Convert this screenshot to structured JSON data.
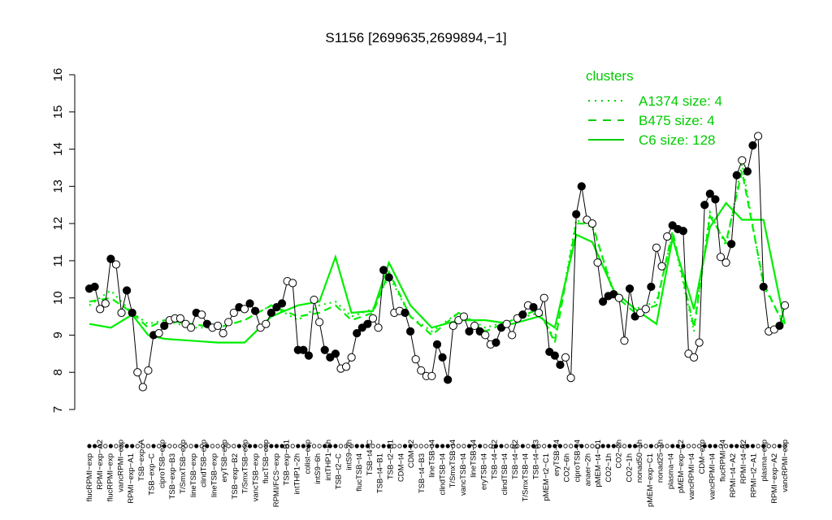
{
  "chart_data": {
    "type": "line",
    "title": "S1156 [2699635,2699894,−1]",
    "xlabel": "",
    "ylabel": "",
    "ylim": [
      7,
      16
    ],
    "yticks": [
      7,
      8,
      9,
      10,
      11,
      12,
      13,
      14,
      15,
      16
    ],
    "grid": false,
    "legend_position": "top-right",
    "colors": {
      "line": "#00ee00",
      "points": "#000000",
      "legend": "#00cc00"
    },
    "legend": {
      "title": "clusters",
      "entries": [
        {
          "label": "A1374 size: 4",
          "style": "dotted"
        },
        {
          "label": "B475 size: 4",
          "style": "dashed"
        },
        {
          "label": "C6 size: 128",
          "style": "solid"
        }
      ]
    },
    "x_tick_labels_top": [
      "RPMI−exp−A2",
      "vancRPMI−exp",
      "TSB−exp−A",
      "ciproTSB−exp",
      "T/SmxTSB−exp",
      "clindTSB−exp",
      "eryTSB−exp",
      "T/SmxTSB−exp",
      "flucTSB−exp",
      "TSB−exp−B1",
      "colist−exp",
      "intTHP1−6h",
      "intS9−2h",
      "TSB−t4−C",
      "TSB−t2−B1",
      "CDM−t2",
      "lineTSB−t4",
      "T/SmxTSB−t4",
      "lineTSB−t4",
      "TSB−t4−B2",
      "TSB−t4−B2",
      "TSB−t4−B3",
      "eryTSB−t4",
      "ciproTSB−t4",
      "pMEM−t4−C1",
      "CO2−2h",
      "nonad50−1h",
      "nonad25−1h",
      "pMEM−exp−C2",
      "CDM−exp",
      "flucRPMI−t4",
      "RPMI−t4−A2",
      "plasma−exp",
      "vancRPMI−exp"
    ],
    "x_tick_labels_bottom": [
      "flucRPMI−exp",
      "flucRPMI−exp",
      "RPMI−exp−A1",
      "TSB−exp−C",
      "TSB−exp−B3",
      "lineTSB−exp",
      "lineTSB−exp",
      "TSB−exp−B2",
      "vancTSB−exp",
      "RPMI/FCS−exp",
      "intTHP1−2h",
      "intS9−6h",
      "TSB−t2−C",
      "flucTSB−t4",
      "TSB−t4−B1",
      "CDM−t4",
      "TSB−t4−B3",
      "clindTSB−t4",
      "vancTSB−t4",
      "eryTSB−t4",
      "clindTSB−t4",
      "T/SmxTSB−t4",
      "pMEM−t2−C1",
      "CO2−6h",
      "anaer−2h",
      "CO2−1h",
      "CO2−1h",
      "pMEM−exp−C1",
      "plasma−t4",
      "vancRPMI−t4",
      "vancRPMI−t4",
      "RPMI−t4−A2",
      "RPMI−t2−A1",
      "RPMI−exp−A2"
    ],
    "series": [
      {
        "points": [
          {
            "x": 1,
            "y": 10.25,
            "f": 1
          },
          {
            "x": 2,
            "y": 10.3,
            "f": 1
          },
          {
            "x": 3,
            "y": 9.7,
            "f": 0
          },
          {
            "x": 4,
            "y": 9.85,
            "f": 0
          },
          {
            "x": 5,
            "y": 11.05,
            "f": 1
          },
          {
            "x": 6,
            "y": 10.9,
            "f": 0
          },
          {
            "x": 7,
            "y": 9.6,
            "f": 0
          },
          {
            "x": 8,
            "y": 10.2,
            "f": 1
          },
          {
            "x": 9,
            "y": 9.6,
            "f": 1
          },
          {
            "x": 10,
            "y": 8.0,
            "f": 0
          },
          {
            "x": 11,
            "y": 7.6,
            "f": 0
          },
          {
            "x": 12,
            "y": 8.05,
            "f": 0
          },
          {
            "x": 13,
            "y": 9.0,
            "f": 1
          },
          {
            "x": 14,
            "y": 9.05,
            "f": 0
          },
          {
            "x": 15,
            "y": 9.25,
            "f": 1
          },
          {
            "x": 16,
            "y": 9.4,
            "f": 0
          },
          {
            "x": 17,
            "y": 9.45,
            "f": 0
          },
          {
            "x": 18,
            "y": 9.45,
            "f": 0
          },
          {
            "x": 19,
            "y": 9.3,
            "f": 0
          },
          {
            "x": 20,
            "y": 9.2,
            "f": 0
          },
          {
            "x": 21,
            "y": 9.6,
            "f": 1
          },
          {
            "x": 22,
            "y": 9.55,
            "f": 0
          },
          {
            "x": 23,
            "y": 9.3,
            "f": 1
          },
          {
            "x": 24,
            "y": 9.2,
            "f": 0
          },
          {
            "x": 25,
            "y": 9.25,
            "f": 0
          },
          {
            "x": 26,
            "y": 9.05,
            "f": 0
          },
          {
            "x": 27,
            "y": 9.35,
            "f": 0
          },
          {
            "x": 28,
            "y": 9.6,
            "f": 0
          },
          {
            "x": 29,
            "y": 9.75,
            "f": 1
          },
          {
            "x": 30,
            "y": 9.7,
            "f": 0
          },
          {
            "x": 31,
            "y": 9.85,
            "f": 1
          },
          {
            "x": 32,
            "y": 9.65,
            "f": 1
          },
          {
            "x": 33,
            "y": 9.2,
            "f": 0
          },
          {
            "x": 34,
            "y": 9.3,
            "f": 0
          },
          {
            "x": 35,
            "y": 9.6,
            "f": 1
          },
          {
            "x": 36,
            "y": 9.75,
            "f": 1
          },
          {
            "x": 37,
            "y": 9.85,
            "f": 1
          },
          {
            "x": 38,
            "y": 10.45,
            "f": 0
          },
          {
            "x": 39,
            "y": 10.4,
            "f": 0
          },
          {
            "x": 40,
            "y": 8.6,
            "f": 1
          },
          {
            "x": 41,
            "y": 8.6,
            "f": 1
          },
          {
            "x": 42,
            "y": 8.45,
            "f": 1
          },
          {
            "x": 43,
            "y": 9.95,
            "f": 0
          },
          {
            "x": 44,
            "y": 9.35,
            "f": 0
          },
          {
            "x": 45,
            "y": 8.6,
            "f": 1
          },
          {
            "x": 46,
            "y": 8.4,
            "f": 1
          },
          {
            "x": 47,
            "y": 8.5,
            "f": 1
          },
          {
            "x": 48,
            "y": 8.1,
            "f": 0
          },
          {
            "x": 49,
            "y": 8.15,
            "f": 0
          },
          {
            "x": 50,
            "y": 8.4,
            "f": 0
          },
          {
            "x": 51,
            "y": 9.05,
            "f": 1
          },
          {
            "x": 52,
            "y": 9.2,
            "f": 1
          },
          {
            "x": 53,
            "y": 9.3,
            "f": 1
          },
          {
            "x": 54,
            "y": 9.45,
            "f": 0
          },
          {
            "x": 55,
            "y": 9.2,
            "f": 0
          },
          {
            "x": 56,
            "y": 10.75,
            "f": 1
          },
          {
            "x": 57,
            "y": 10.55,
            "f": 1
          },
          {
            "x": 58,
            "y": 9.6,
            "f": 0
          },
          {
            "x": 59,
            "y": 9.65,
            "f": 0
          },
          {
            "x": 60,
            "y": 9.6,
            "f": 1
          },
          {
            "x": 61,
            "y": 9.1,
            "f": 1
          },
          {
            "x": 62,
            "y": 8.35,
            "f": 0
          },
          {
            "x": 63,
            "y": 8.05,
            "f": 0
          },
          {
            "x": 64,
            "y": 7.9,
            "f": 0
          },
          {
            "x": 65,
            "y": 7.9,
            "f": 0
          },
          {
            "x": 66,
            "y": 8.75,
            "f": 1
          },
          {
            "x": 67,
            "y": 8.4,
            "f": 1
          },
          {
            "x": 68,
            "y": 7.8,
            "f": 1
          },
          {
            "x": 69,
            "y": 9.25,
            "f": 0
          },
          {
            "x": 70,
            "y": 9.4,
            "f": 0
          },
          {
            "x": 71,
            "y": 9.5,
            "f": 0
          },
          {
            "x": 72,
            "y": 9.1,
            "f": 1
          },
          {
            "x": 73,
            "y": 9.25,
            "f": 0
          },
          {
            "x": 74,
            "y": 9.1,
            "f": 1
          },
          {
            "x": 75,
            "y": 9.0,
            "f": 0
          },
          {
            "x": 76,
            "y": 8.75,
            "f": 0
          },
          {
            "x": 77,
            "y": 8.8,
            "f": 1
          },
          {
            "x": 78,
            "y": 9.2,
            "f": 1
          },
          {
            "x": 79,
            "y": 9.3,
            "f": 0
          },
          {
            "x": 80,
            "y": 9.0,
            "f": 0
          },
          {
            "x": 81,
            "y": 9.45,
            "f": 0
          },
          {
            "x": 82,
            "y": 9.55,
            "f": 1
          },
          {
            "x": 83,
            "y": 9.8,
            "f": 0
          },
          {
            "x": 84,
            "y": 9.75,
            "f": 1
          },
          {
            "x": 85,
            "y": 9.6,
            "f": 0
          },
          {
            "x": 86,
            "y": 10.0,
            "f": 0
          },
          {
            "x": 87,
            "y": 8.55,
            "f": 1
          },
          {
            "x": 88,
            "y": 8.45,
            "f": 1
          },
          {
            "x": 89,
            "y": 8.2,
            "f": 1
          },
          {
            "x": 90,
            "y": 8.4,
            "f": 0
          },
          {
            "x": 91,
            "y": 7.85,
            "f": 0
          },
          {
            "x": 92,
            "y": 12.25,
            "f": 1
          },
          {
            "x": 93,
            "y": 13.0,
            "f": 1
          },
          {
            "x": 94,
            "y": 12.1,
            "f": 0
          },
          {
            "x": 95,
            "y": 12.0,
            "f": 0
          },
          {
            "x": 96,
            "y": 10.95,
            "f": 0
          },
          {
            "x": 97,
            "y": 9.9,
            "f": 1
          },
          {
            "x": 98,
            "y": 10.05,
            "f": 1
          },
          {
            "x": 99,
            "y": 10.1,
            "f": 1
          },
          {
            "x": 100,
            "y": 10.0,
            "f": 0
          },
          {
            "x": 101,
            "y": 8.85,
            "f": 0
          },
          {
            "x": 102,
            "y": 10.25,
            "f": 1
          },
          {
            "x": 103,
            "y": 9.5,
            "f": 1
          },
          {
            "x": 104,
            "y": 9.6,
            "f": 0
          },
          {
            "x": 105,
            "y": 9.7,
            "f": 0
          },
          {
            "x": 106,
            "y": 10.3,
            "f": 1
          },
          {
            "x": 107,
            "y": 11.35,
            "f": 0
          },
          {
            "x": 108,
            "y": 10.85,
            "f": 0
          },
          {
            "x": 109,
            "y": 11.65,
            "f": 0
          },
          {
            "x": 110,
            "y": 11.95,
            "f": 1
          },
          {
            "x": 111,
            "y": 11.85,
            "f": 1
          },
          {
            "x": 112,
            "y": 11.8,
            "f": 1
          },
          {
            "x": 113,
            "y": 8.5,
            "f": 0
          },
          {
            "x": 114,
            "y": 8.4,
            "f": 0
          },
          {
            "x": 115,
            "y": 8.8,
            "f": 0
          },
          {
            "x": 116,
            "y": 12.5,
            "f": 1
          },
          {
            "x": 117,
            "y": 12.8,
            "f": 1
          },
          {
            "x": 118,
            "y": 12.65,
            "f": 1
          },
          {
            "x": 119,
            "y": 11.1,
            "f": 0
          },
          {
            "x": 120,
            "y": 10.95,
            "f": 0
          },
          {
            "x": 121,
            "y": 11.45,
            "f": 1
          },
          {
            "x": 122,
            "y": 13.3,
            "f": 1
          },
          {
            "x": 123,
            "y": 13.7,
            "f": 0
          },
          {
            "x": 124,
            "y": 13.4,
            "f": 1
          },
          {
            "x": 125,
            "y": 14.1,
            "f": 1
          },
          {
            "x": 126,
            "y": 14.35,
            "f": 0
          },
          {
            "x": 127,
            "y": 10.3,
            "f": 1
          },
          {
            "x": 128,
            "y": 9.1,
            "f": 0
          },
          {
            "x": 129,
            "y": 9.15,
            "f": 0
          },
          {
            "x": 130,
            "y": 9.25,
            "f": 1
          },
          {
            "x": 131,
            "y": 9.8,
            "f": 0
          }
        ]
      }
    ],
    "cluster_lines": {
      "xs": [
        1,
        5,
        9,
        12,
        15,
        20,
        25,
        30,
        35,
        40,
        44,
        47,
        50,
        54,
        57,
        61,
        65,
        70,
        75,
        80,
        85,
        88,
        92,
        95,
        99,
        103,
        107,
        110,
        114,
        117,
        120,
        123,
        127,
        131
      ],
      "C6": [
        9.3,
        9.2,
        9.55,
        9.0,
        8.9,
        8.85,
        8.8,
        8.8,
        9.5,
        9.8,
        9.9,
        11.1,
        9.6,
        9.65,
        10.95,
        9.8,
        9.2,
        9.4,
        9.4,
        9.3,
        9.5,
        9.2,
        11.7,
        11.5,
        10.2,
        9.7,
        9.3,
        11.6,
        9.7,
        11.9,
        12.55,
        12.1,
        12.1,
        9.3
      ],
      "A1374": [
        9.8,
        10.2,
        9.6,
        9.3,
        9.4,
        9.2,
        9.2,
        9.4,
        9.8,
        9.4,
        9.8,
        9.9,
        9.5,
        9.7,
        10.6,
        9.5,
        9.1,
        9.6,
        9.2,
        9.4,
        9.6,
        8.9,
        12.1,
        11.9,
        10.2,
        9.7,
        9.9,
        11.7,
        9.1,
        12.3,
        11.4,
        13.6,
        10.3,
        9.3
      ],
      "B475": [
        9.9,
        10.0,
        9.6,
        9.2,
        9.4,
        9.3,
        9.2,
        9.4,
        9.8,
        9.5,
        9.6,
        9.8,
        9.4,
        9.6,
        10.7,
        9.5,
        9.0,
        9.6,
        9.1,
        9.4,
        9.7,
        8.8,
        12.0,
        12.0,
        10.1,
        9.6,
        9.8,
        11.8,
        9.2,
        12.2,
        11.5,
        13.4,
        10.4,
        9.2
      ]
    }
  }
}
